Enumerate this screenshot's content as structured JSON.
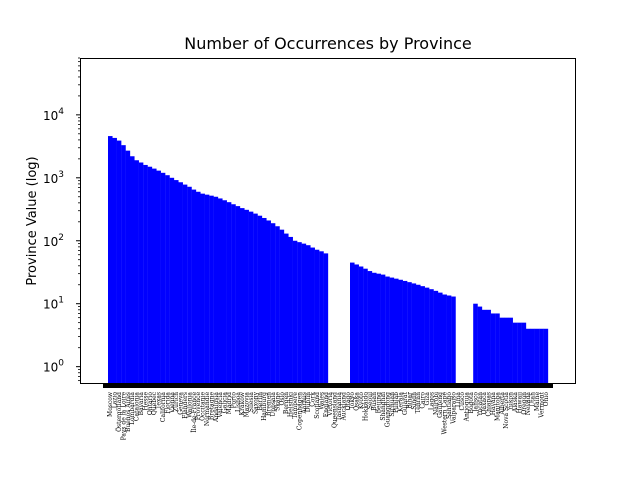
{
  "chart_data": {
    "type": "bar",
    "title": "Number of Occurrences by Province",
    "xlabel": "",
    "ylabel": "Province Value (log)",
    "yscale": "log",
    "ylim": [
      0.55,
      80000
    ],
    "yticks": [
      {
        "value": 1,
        "label": "10",
        "exp": "0"
      },
      {
        "value": 10,
        "label": "10",
        "exp": "1"
      },
      {
        "value": 100,
        "label": "10",
        "exp": "2"
      },
      {
        "value": 1000,
        "label": "10",
        "exp": "3"
      },
      {
        "value": 10000,
        "label": "10",
        "exp": "4"
      }
    ],
    "bar_color": "#0000ff",
    "grid": false,
    "legend": "none",
    "categories_legible": false,
    "categories": [
      "Moscow",
      "Lazio",
      "Östergötland",
      "Pays de la Loire",
      "Buenos Aires",
      "Lombardia",
      "Catalonia",
      "Bavaria",
      "Hesse",
      "Ontario",
      "Quebec",
      "Texas",
      "California",
      "Florida",
      "Vienna",
      "Zürich",
      "Geneva",
      "Flanders",
      "Wallonia",
      "Île-de-France",
      "Provence",
      "Occitanie",
      "Normandie",
      "Bretagne",
      "Andalusia",
      "Valencia",
      "Galicia",
      "Madrid",
      "Porto",
      "Lisboa",
      "Kraków",
      "Mazovia",
      "Silesia",
      "Saxony",
      "Berlin",
      "Hamburg",
      "Bremen",
      "Uppsala",
      "Skåne",
      "Oslo",
      "Bergen",
      "Helsinki",
      "Tampere",
      "Copenhagen",
      "Aarhus",
      "Dublin",
      "Cork",
      "Scotland",
      "Wales",
      "England",
      "Victoria",
      "Queensland",
      "Tasmania",
      "Auckland",
      "Otago",
      "Tokyo",
      "Osaka",
      "Kyoto",
      "Hokkaido",
      "Seoul",
      "Busan",
      "Beijing",
      "Shanghai",
      "Guangdong",
      "Sichuan",
      "Punjab",
      "Kerala",
      "Gujarat",
      "Bihar",
      "Sindh",
      "Tehran",
      "Cairo",
      "Giza",
      "Lagos",
      "Nairobi",
      "Gauteng",
      "Western Cape",
      "Santiago",
      "Valparaíso",
      "Lima",
      "Cusco",
      "Antioquia",
      "Bogotá",
      "Jalisco",
      "Yucatán",
      "Oaxaca",
      "Chiapas",
      "Havana",
      "Manitoba",
      "Alberta",
      "Nova Scotia",
      "Yukon",
      "Alaska",
      "Hawaii",
      "Oregon",
      "Nevada",
      "Utah",
      "Maine",
      "Vermont",
      "Ohio"
    ],
    "values": [
      4600,
      4300,
      3900,
      3300,
      2700,
      2200,
      1900,
      1750,
      1600,
      1500,
      1400,
      1300,
      1200,
      1100,
      1000,
      920,
      850,
      780,
      720,
      650,
      600,
      560,
      540,
      520,
      500,
      470,
      440,
      410,
      380,
      355,
      330,
      310,
      290,
      270,
      250,
      230,
      210,
      190,
      170,
      150,
      130,
      115,
      100,
      95,
      90,
      85,
      78,
      72,
      68,
      63,
      0,
      0,
      0,
      0,
      0,
      45,
      42,
      39,
      36,
      33,
      31,
      30,
      29,
      27,
      26,
      25,
      24,
      23,
      22,
      21,
      20,
      19,
      18,
      17,
      16,
      15,
      14,
      13.5,
      13,
      0,
      0,
      0,
      0,
      10,
      9,
      8,
      8,
      7,
      7,
      6,
      6,
      6,
      5,
      5,
      5,
      4,
      4,
      4,
      4,
      4
    ]
  }
}
